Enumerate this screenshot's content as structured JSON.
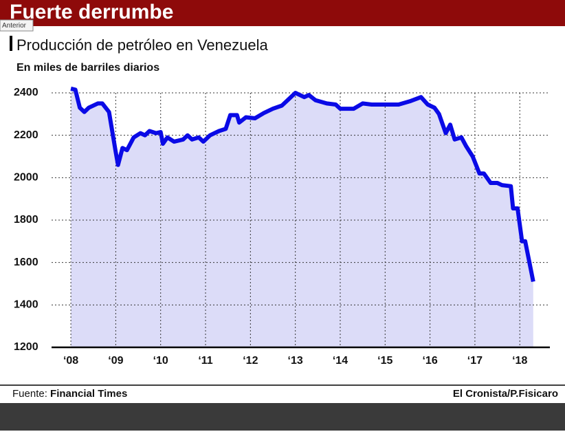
{
  "banner": "Fuerte derrumbe",
  "tooltip": "Anterior",
  "footer": {
    "source_label": "Fuente:",
    "source": "Financial Times",
    "credit": "El Cronista/P.Fisicaro"
  },
  "chart_data": {
    "type": "line",
    "title": "Producción de petróleo en Venezuela",
    "subtitle": "En miles de barriles diarios",
    "color": "#0a0ae6",
    "fill": "#dcdcf8",
    "grid": true,
    "x": [
      2008.0,
      2008.1,
      2008.2,
      2008.3,
      2008.4,
      2008.6,
      2008.7,
      2008.85,
      2009.0,
      2009.05,
      2009.15,
      2009.25,
      2009.4,
      2009.55,
      2009.65,
      2009.75,
      2009.9,
      2010.0,
      2010.05,
      2010.15,
      2010.3,
      2010.5,
      2010.6,
      2010.7,
      2010.85,
      2010.95,
      2011.1,
      2011.3,
      2011.45,
      2011.55,
      2011.7,
      2011.75,
      2011.9,
      2012.1,
      2012.3,
      2012.5,
      2012.7,
      2012.85,
      2013.0,
      2013.2,
      2013.3,
      2013.45,
      2013.7,
      2013.9,
      2014.0,
      2014.3,
      2014.5,
      2014.7,
      2015.0,
      2015.3,
      2015.55,
      2015.8,
      2015.95,
      2016.1,
      2016.2,
      2016.35,
      2016.45,
      2016.55,
      2016.7,
      2016.8,
      2016.95,
      2017.1,
      2017.2,
      2017.35,
      2017.5,
      2017.6,
      2017.8,
      2017.85,
      2017.95,
      2018.05,
      2018.12,
      2018.3
    ],
    "values": [
      2420,
      2415,
      2330,
      2310,
      2330,
      2350,
      2350,
      2310,
      2120,
      2060,
      2140,
      2130,
      2190,
      2210,
      2200,
      2220,
      2210,
      2215,
      2160,
      2190,
      2170,
      2180,
      2200,
      2180,
      2190,
      2170,
      2200,
      2220,
      2230,
      2295,
      2295,
      2260,
      2285,
      2280,
      2305,
      2325,
      2340,
      2370,
      2400,
      2380,
      2390,
      2365,
      2350,
      2345,
      2325,
      2325,
      2350,
      2345,
      2345,
      2345,
      2360,
      2380,
      2345,
      2330,
      2300,
      2210,
      2250,
      2180,
      2190,
      2150,
      2100,
      2020,
      2020,
      1975,
      1975,
      1965,
      1960,
      1855,
      1855,
      1700,
      1700,
      1510
    ],
    "xlim": [
      2007.57,
      2018.67
    ],
    "ylim": [
      1200,
      2400
    ],
    "yticks": [
      1200,
      1400,
      1600,
      1800,
      2000,
      2200,
      2400
    ],
    "xticks": [
      {
        "value": 2008,
        "label": "‘08"
      },
      {
        "value": 2009,
        "label": "‘09"
      },
      {
        "value": 2010,
        "label": "‘10"
      },
      {
        "value": 2011,
        "label": "‘11"
      },
      {
        "value": 2012,
        "label": "‘12"
      },
      {
        "value": 2013,
        "label": "‘13"
      },
      {
        "value": 2014,
        "label": "‘14"
      },
      {
        "value": 2015,
        "label": "‘15"
      },
      {
        "value": 2016,
        "label": "‘16"
      },
      {
        "value": 2017,
        "label": "‘17"
      },
      {
        "value": 2018,
        "label": "‘18"
      }
    ]
  }
}
